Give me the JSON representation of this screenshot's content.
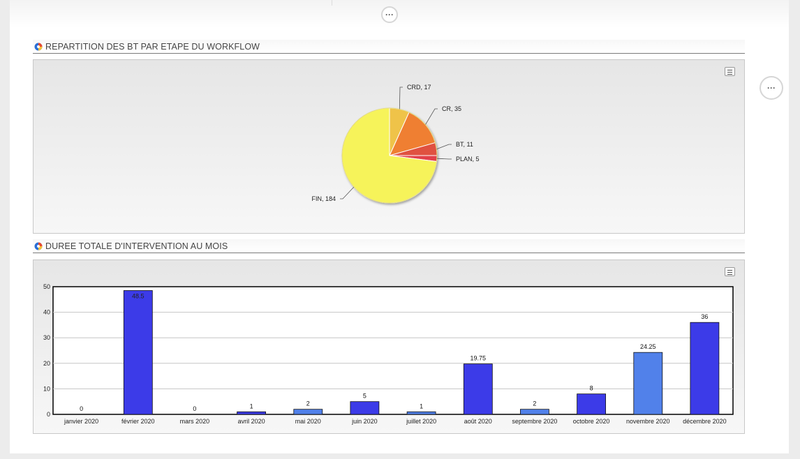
{
  "toolbar": {
    "more_label": "···"
  },
  "sections": [
    {
      "title": "REPARTITION DES BT PAR ETAPE DU WORKFLOW"
    },
    {
      "title": "DUREE TOTALE D'INTERVENTION AU MOIS"
    }
  ],
  "colors": {
    "pie": [
      "#efc34a",
      "#ef7f31",
      "#e0513f",
      "#e2414a",
      "#f6f35a"
    ],
    "bar_dark": "#3c3be8",
    "bar_light": "#5181ea"
  },
  "icons": {
    "more": "more-horizontal-icon",
    "menu": "hamburger-menu-icon",
    "logo": "colored-pie-logo-icon"
  },
  "chart_data": [
    {
      "type": "pie",
      "title": "REPARTITION DES BT PAR ETAPE DU WORKFLOW",
      "slices": [
        {
          "label": "CRD",
          "value": 17,
          "text": "CRD, 17"
        },
        {
          "label": "CR",
          "value": 35,
          "text": "CR, 35"
        },
        {
          "label": "BT",
          "value": 11,
          "text": "BT, 11"
        },
        {
          "label": "PLAN",
          "value": 5,
          "text": "PLAN, 5"
        },
        {
          "label": "FIN",
          "value": 184,
          "text": "FIN, 184"
        }
      ]
    },
    {
      "type": "bar",
      "title": "DUREE TOTALE D'INTERVENTION AU MOIS",
      "categories": [
        "janvier 2020",
        "février 2020",
        "mars 2020",
        "avril 2020",
        "mai 2020",
        "juin 2020",
        "juillet 2020",
        "août 2020",
        "septembre 2020",
        "octobre 2020",
        "novembre 2020",
        "décembre 2020"
      ],
      "values": [
        0,
        48.5,
        0,
        1,
        2,
        5,
        1,
        19.75,
        2,
        8,
        24.25,
        36
      ],
      "value_labels": [
        "0",
        "48.5",
        "0",
        "1",
        "2",
        "5",
        "1",
        "19.75",
        "2",
        "8",
        "24.25",
        "36"
      ],
      "bar_shades": [
        "dark",
        "dark",
        "dark",
        "dark",
        "light",
        "dark",
        "light",
        "dark",
        "light",
        "dark",
        "light",
        "dark"
      ],
      "ylim": [
        0,
        50
      ],
      "yticks": [
        "0",
        "10",
        "20",
        "30",
        "40",
        "50"
      ],
      "grid": true,
      "xlabel": "",
      "ylabel": ""
    }
  ]
}
